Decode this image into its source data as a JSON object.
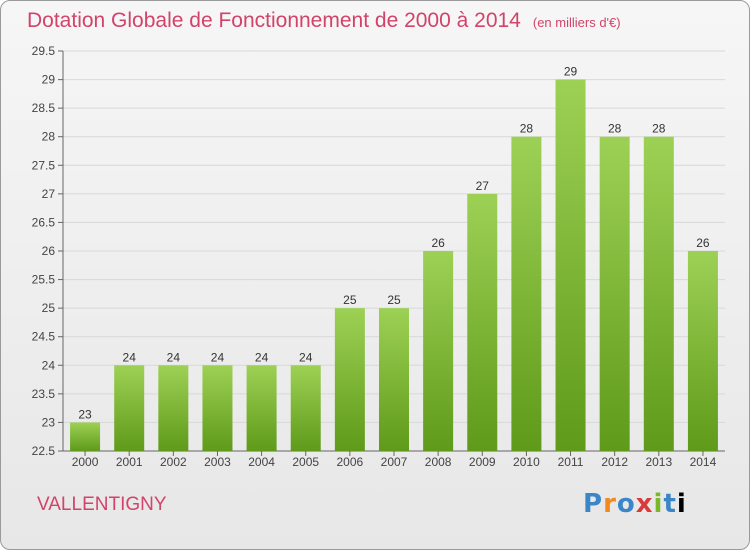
{
  "header": {
    "title": "Dotation Globale de Fonctionnement de 2000 à 2014",
    "subtitle": "(en milliers d'€)"
  },
  "commune": "VALLENTIGNY",
  "logo": {
    "letters": [
      "P",
      "r",
      "o",
      "x",
      "i",
      "t",
      "i"
    ]
  },
  "colors": {
    "title": "#d2436a",
    "bar_top": "#9dd155",
    "bar_bottom": "#5f9a1a"
  },
  "chart_data": {
    "type": "bar",
    "title": "Dotation Globale de Fonctionnement de 2000 à 2014",
    "subtitle": "(en milliers d'€)",
    "categories": [
      "2000",
      "2001",
      "2002",
      "2003",
      "2004",
      "2005",
      "2006",
      "2007",
      "2008",
      "2009",
      "2010",
      "2011",
      "2012",
      "2013",
      "2014"
    ],
    "values": [
      23,
      24,
      24,
      24,
      24,
      24,
      25,
      25,
      26,
      27,
      28,
      29,
      28,
      28,
      26
    ],
    "labels": [
      "23",
      "24",
      "24",
      "24",
      "24",
      "24",
      "25",
      "25",
      "26",
      "27",
      "28",
      "29",
      "28",
      "28",
      "26"
    ],
    "ylim": [
      22.5,
      29.5
    ],
    "yticks": [
      22.5,
      23,
      23.5,
      24,
      24.5,
      25,
      25.5,
      26,
      26.5,
      27,
      27.5,
      28,
      28.5,
      29,
      29.5
    ],
    "ytick_labels": [
      "22.5",
      "23",
      "23.5",
      "24",
      "24.5",
      "25",
      "25.5",
      "26",
      "26.5",
      "27",
      "27.5",
      "28",
      "28.5",
      "29",
      "29.5"
    ],
    "grid": true,
    "xlabel": "",
    "ylabel": ""
  }
}
